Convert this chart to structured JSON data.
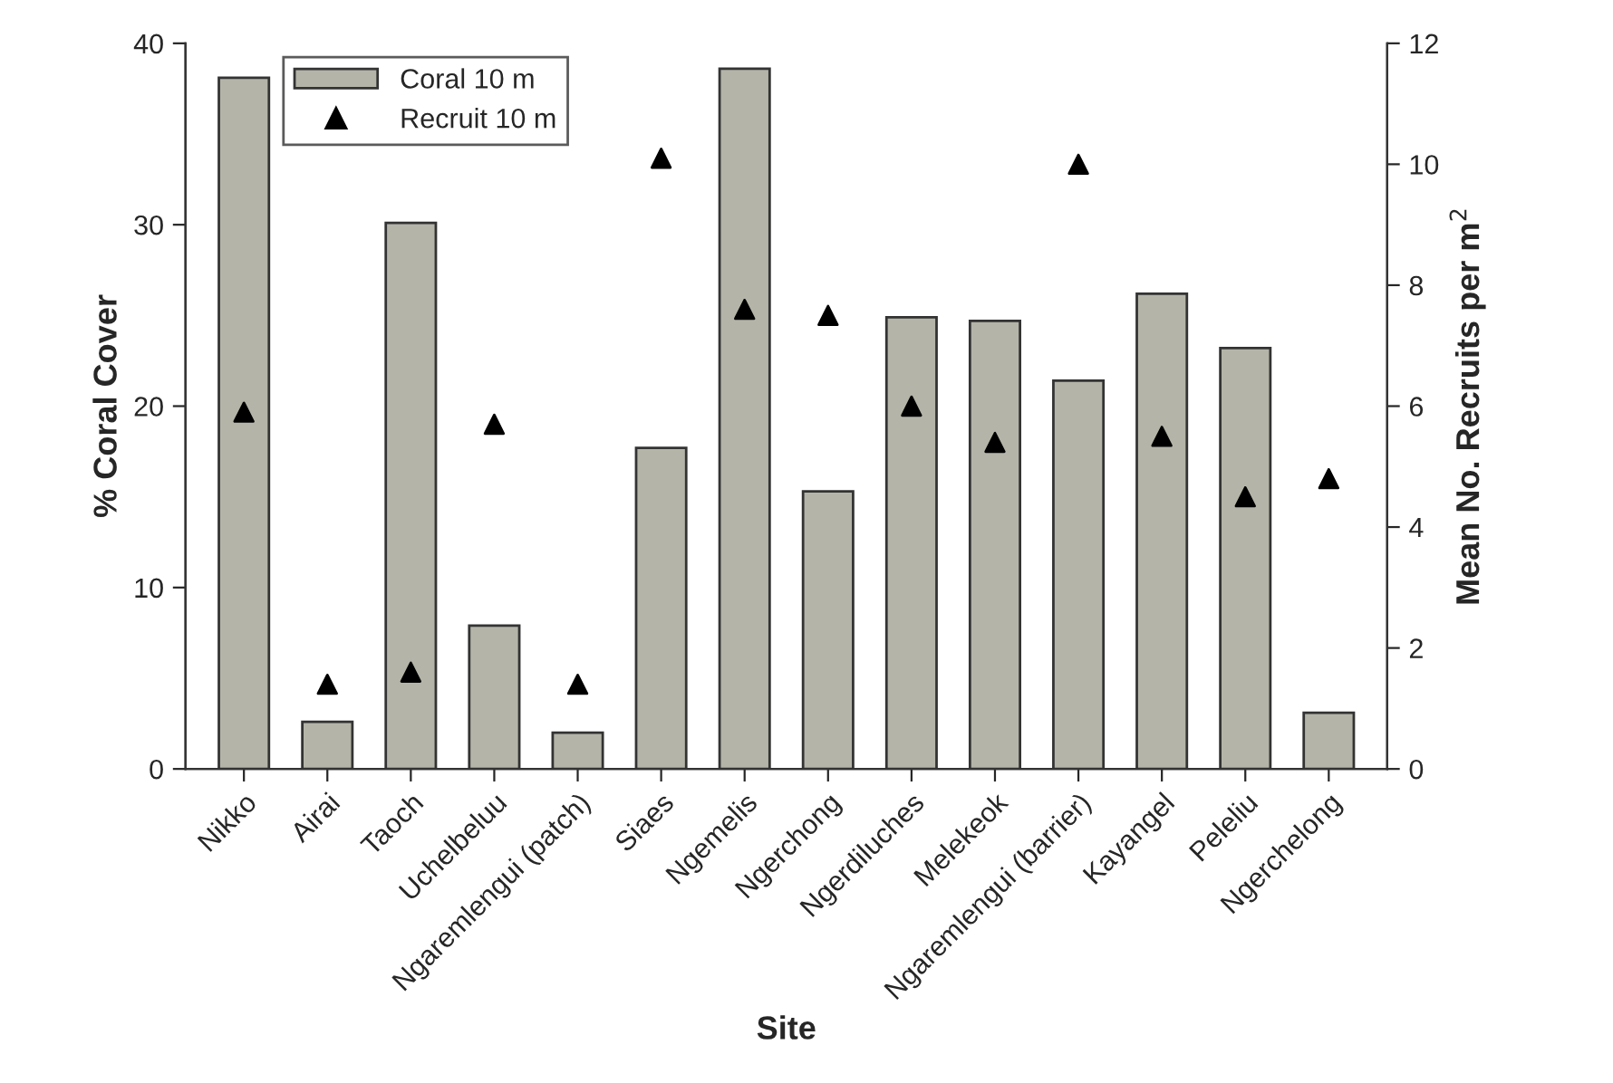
{
  "chart_data": {
    "type": "bar",
    "xlabel": "Site",
    "ylabel": "% Coral Cover",
    "y2label": "Mean No. Recruits per m$^{2}$",
    "categories": [
      "Nikko",
      "Airai",
      "Taoch",
      "Uchelbeluu",
      "Ngaremlengui (patch)",
      "Siaes",
      "Ngemelis",
      "Ngerchong",
      "Ngerdiluches",
      "Melekeok",
      "Ngaremlengui (barrier)",
      "Kayangel",
      "Peleliu",
      "Ngerchelong"
    ],
    "series": [
      {
        "name": "Coral 10 m",
        "color": "#b4b4a8",
        "values": [
          38.1,
          2.6,
          30.1,
          7.9,
          2.0,
          17.7,
          38.6,
          15.3,
          24.9,
          24.7,
          21.4,
          26.2,
          23.2,
          3.1
        ]
      },
      {
        "name": "Recruit 10 m",
        "type": "scatter",
        "axis": "y2",
        "marker": "triangle",
        "color": "#000000",
        "values": [
          5.9,
          1.4,
          1.6,
          5.7,
          1.4,
          10.1,
          7.6,
          7.5,
          6.0,
          5.4,
          10.0,
          5.5,
          4.5,
          4.8
        ]
      }
    ],
    "ylim": [
      0,
      40
    ],
    "yticks": [
      0,
      10,
      20,
      30,
      40
    ],
    "y2lim": [
      0,
      12
    ],
    "y2ticks": [
      0,
      2,
      4,
      6,
      8,
      10,
      12
    ],
    "grid": false,
    "legend": "top left"
  }
}
